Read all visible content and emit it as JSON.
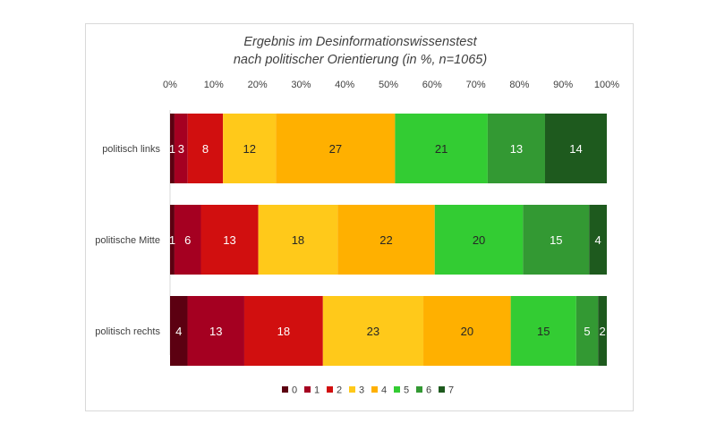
{
  "chart_data": {
    "type": "bar",
    "orientation": "horizontal-stacked-100",
    "title": "Ergebnis im Desinformationswissenstest",
    "subtitle": "nach politischer Orientierung (in %, n=1065)",
    "x_ticks": [
      "0%",
      "10%",
      "20%",
      "30%",
      "40%",
      "50%",
      "60%",
      "70%",
      "80%",
      "90%",
      "100%"
    ],
    "xlim": [
      0,
      100
    ],
    "categories": [
      "politisch links",
      "politische Mitte",
      "politisch rechts"
    ],
    "series": [
      {
        "name": "0",
        "color": "#5c0011",
        "values": [
          1,
          1,
          4
        ],
        "labels": [
          "1",
          "1",
          "4"
        ]
      },
      {
        "name": "1",
        "color": "#a50021",
        "values": [
          3,
          6,
          13
        ],
        "labels": [
          "3",
          "6",
          "13"
        ]
      },
      {
        "name": "2",
        "color": "#d10f0f",
        "values": [
          8,
          13,
          18
        ],
        "labels": [
          "8",
          "13",
          "18"
        ]
      },
      {
        "name": "3",
        "color": "#ffc91a",
        "values": [
          12,
          18,
          23
        ],
        "labels": [
          "12",
          "18",
          "23"
        ]
      },
      {
        "name": "4",
        "color": "#ffb000",
        "values": [
          27,
          22,
          20
        ],
        "labels": [
          "27",
          "22",
          "20"
        ]
      },
      {
        "name": "5",
        "color": "#33cc33",
        "values": [
          21,
          20,
          15
        ],
        "labels": [
          "21",
          "20",
          "15"
        ]
      },
      {
        "name": "6",
        "color": "#339933",
        "values": [
          13,
          15,
          5
        ],
        "labels": [
          "13",
          "15",
          "5"
        ]
      },
      {
        "name": "7",
        "color": "#1e5a1e",
        "values": [
          14,
          4,
          2
        ],
        "labels": [
          "14",
          "4",
          "2"
        ]
      }
    ],
    "legend_position": "bottom",
    "grid": false
  }
}
